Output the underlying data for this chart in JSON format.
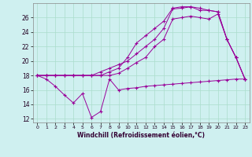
{
  "xlabel": "Windchill (Refroidissement éolien,°C)",
  "xlim": [
    -0.5,
    23.5
  ],
  "ylim": [
    11.5,
    28.0
  ],
  "xticks": [
    0,
    1,
    2,
    3,
    4,
    5,
    6,
    7,
    8,
    9,
    10,
    11,
    12,
    13,
    14,
    15,
    16,
    17,
    18,
    19,
    20,
    21,
    22,
    23
  ],
  "yticks": [
    12,
    14,
    16,
    18,
    20,
    22,
    24,
    26
  ],
  "bg_color": "#cff0f0",
  "grid_color": "#aaddcc",
  "line_color": "#990099",
  "line1_x": [
    0,
    1,
    2,
    3,
    4,
    5,
    6,
    7,
    8,
    9,
    10,
    11,
    12,
    13,
    14,
    15,
    16,
    17,
    18,
    19,
    20,
    21,
    22,
    23
  ],
  "line1_y": [
    18,
    17.5,
    16.5,
    15.3,
    14.2,
    15.5,
    12.2,
    13.0,
    17.5,
    16.0,
    16.2,
    16.3,
    16.5,
    16.6,
    16.7,
    16.8,
    16.9,
    17.0,
    17.1,
    17.2,
    17.3,
    17.4,
    17.5,
    17.5
  ],
  "line2_x": [
    0,
    1,
    2,
    3,
    4,
    5,
    6,
    7,
    8,
    9,
    10,
    11,
    12,
    13,
    14,
    15,
    16,
    17,
    18,
    19,
    20,
    21,
    22,
    23
  ],
  "line2_y": [
    18,
    18,
    18,
    18,
    18,
    18,
    18,
    18,
    18,
    18.3,
    19.0,
    19.8,
    20.5,
    22.0,
    23.0,
    25.8,
    26.0,
    26.2,
    26.0,
    25.8,
    26.5,
    23.0,
    20.5,
    17.5
  ],
  "line3_x": [
    0,
    1,
    2,
    3,
    4,
    5,
    6,
    7,
    8,
    9,
    10,
    11,
    12,
    13,
    14,
    15,
    16,
    17,
    18,
    19,
    20,
    21,
    22,
    23
  ],
  "line3_y": [
    18,
    18,
    18,
    18,
    18,
    18,
    18,
    18.5,
    19.0,
    19.5,
    20.0,
    21.0,
    22.0,
    23.0,
    24.5,
    27.2,
    27.3,
    27.5,
    27.3,
    27.0,
    26.8,
    23.0,
    20.5,
    17.5
  ],
  "line4_x": [
    0,
    1,
    2,
    3,
    4,
    5,
    6,
    7,
    8,
    9,
    10,
    11,
    12,
    13,
    14,
    15,
    16,
    17,
    18,
    19,
    20,
    21,
    22,
    23
  ],
  "line4_y": [
    18,
    18,
    18,
    18,
    18,
    18,
    18,
    18,
    18.5,
    19.0,
    20.5,
    22.5,
    23.5,
    24.5,
    25.5,
    27.3,
    27.5,
    27.5,
    27.0,
    27.0,
    26.8,
    23.0,
    20.5,
    17.5
  ]
}
